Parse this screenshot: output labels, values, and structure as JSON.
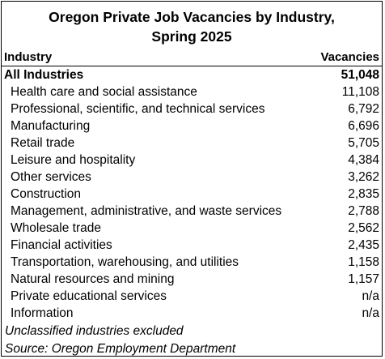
{
  "title": {
    "line1": "Oregon Private Job Vacancies by Industry,",
    "line2": "Spring 2025"
  },
  "columns": {
    "industry": "Industry",
    "vacancies": "Vacancies"
  },
  "rows": [
    {
      "industry": "All Industries",
      "vacancies": "51,048"
    },
    {
      "industry": "Health care and social assistance",
      "vacancies": "11,108"
    },
    {
      "industry": "Professional, scientific, and technical services",
      "vacancies": "6,792"
    },
    {
      "industry": "Manufacturing",
      "vacancies": "6,696"
    },
    {
      "industry": "Retail trade",
      "vacancies": "5,705"
    },
    {
      "industry": "Leisure and hospitality",
      "vacancies": "4,384"
    },
    {
      "industry": "Other services",
      "vacancies": "3,262"
    },
    {
      "industry": "Construction",
      "vacancies": "2,835"
    },
    {
      "industry": "Management, administrative, and waste services",
      "vacancies": "2,788"
    },
    {
      "industry": "Wholesale trade",
      "vacancies": "2,562"
    },
    {
      "industry": "Financial activities",
      "vacancies": "2,435"
    },
    {
      "industry": "Transportation, warehousing, and utilities",
      "vacancies": "1,158"
    },
    {
      "industry": "Natural resources and mining",
      "vacancies": "1,157"
    },
    {
      "industry": "Private educational services",
      "vacancies": "n/a"
    },
    {
      "industry": "Information",
      "vacancies": "n/a"
    }
  ],
  "notes": {
    "exclusion": "Unclassified industries excluded",
    "source": "Source: Oregon Employment Department"
  }
}
